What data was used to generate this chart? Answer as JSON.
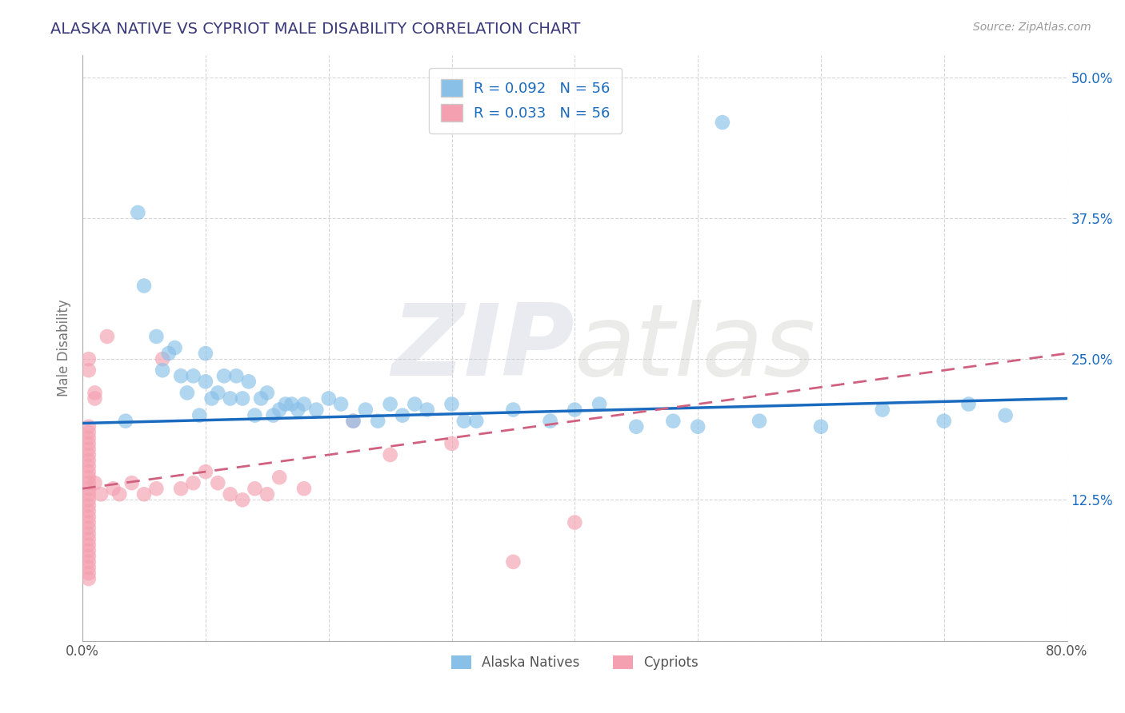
{
  "title": "ALASKA NATIVE VS CYPRIOT MALE DISABILITY CORRELATION CHART",
  "source": "Source: ZipAtlas.com",
  "ylabel": "Male Disability",
  "xmin": 0.0,
  "xmax": 0.8,
  "ymin": 0.0,
  "ymax": 0.52,
  "xticks": [
    0.0,
    0.1,
    0.2,
    0.3,
    0.4,
    0.5,
    0.6,
    0.7,
    0.8
  ],
  "yticks": [
    0.0,
    0.125,
    0.25,
    0.375,
    0.5
  ],
  "ytick_labels": [
    "",
    "12.5%",
    "25.0%",
    "37.5%",
    "50.0%"
  ],
  "alaska_R": 0.092,
  "alaska_N": 56,
  "cypriot_R": 0.033,
  "cypriot_N": 56,
  "alaska_color": "#88c0e8",
  "cypriot_color": "#f4a0b0",
  "alaska_trend_color": "#1a6bbf",
  "cypriot_trend_color": "#d06080",
  "background_color": "#ffffff",
  "grid_color": "#cccccc",
  "title_color": "#3a3a7a",
  "alaska_x": [
    0.035,
    0.045,
    0.05,
    0.06,
    0.065,
    0.07,
    0.075,
    0.08,
    0.085,
    0.09,
    0.095,
    0.1,
    0.1,
    0.105,
    0.11,
    0.115,
    0.12,
    0.125,
    0.13,
    0.135,
    0.14,
    0.145,
    0.15,
    0.155,
    0.16,
    0.165,
    0.17,
    0.175,
    0.18,
    0.19,
    0.2,
    0.21,
    0.22,
    0.23,
    0.24,
    0.25,
    0.26,
    0.27,
    0.28,
    0.3,
    0.31,
    0.32,
    0.35,
    0.38,
    0.4,
    0.42,
    0.45,
    0.48,
    0.5,
    0.52,
    0.55,
    0.6,
    0.65,
    0.7,
    0.72,
    0.75
  ],
  "alaska_y": [
    0.195,
    0.38,
    0.315,
    0.27,
    0.24,
    0.255,
    0.26,
    0.235,
    0.22,
    0.235,
    0.2,
    0.23,
    0.255,
    0.215,
    0.22,
    0.235,
    0.215,
    0.235,
    0.215,
    0.23,
    0.2,
    0.215,
    0.22,
    0.2,
    0.205,
    0.21,
    0.21,
    0.205,
    0.21,
    0.205,
    0.215,
    0.21,
    0.195,
    0.205,
    0.195,
    0.21,
    0.2,
    0.21,
    0.205,
    0.21,
    0.195,
    0.195,
    0.205,
    0.195,
    0.205,
    0.21,
    0.19,
    0.195,
    0.19,
    0.46,
    0.195,
    0.19,
    0.205,
    0.195,
    0.21,
    0.2
  ],
  "cypriot_x": [
    0.005,
    0.005,
    0.005,
    0.005,
    0.005,
    0.005,
    0.005,
    0.005,
    0.005,
    0.005,
    0.005,
    0.005,
    0.005,
    0.005,
    0.005,
    0.005,
    0.005,
    0.005,
    0.005,
    0.005,
    0.005,
    0.005,
    0.005,
    0.005,
    0.005,
    0.005,
    0.005,
    0.005,
    0.005,
    0.005,
    0.01,
    0.01,
    0.01,
    0.015,
    0.02,
    0.025,
    0.03,
    0.04,
    0.05,
    0.06,
    0.065,
    0.08,
    0.09,
    0.1,
    0.11,
    0.12,
    0.13,
    0.14,
    0.15,
    0.16,
    0.18,
    0.22,
    0.25,
    0.3,
    0.35,
    0.4
  ],
  "cypriot_y": [
    0.19,
    0.185,
    0.18,
    0.175,
    0.17,
    0.165,
    0.16,
    0.155,
    0.15,
    0.145,
    0.14,
    0.135,
    0.13,
    0.125,
    0.12,
    0.115,
    0.11,
    0.105,
    0.1,
    0.095,
    0.09,
    0.085,
    0.08,
    0.075,
    0.07,
    0.065,
    0.06,
    0.055,
    0.24,
    0.25,
    0.22,
    0.215,
    0.14,
    0.13,
    0.27,
    0.135,
    0.13,
    0.14,
    0.13,
    0.135,
    0.25,
    0.135,
    0.14,
    0.15,
    0.14,
    0.13,
    0.125,
    0.135,
    0.13,
    0.145,
    0.135,
    0.195,
    0.165,
    0.175,
    0.07,
    0.105
  ],
  "watermark_zip": "ZIP",
  "watermark_atlas": "atlas",
  "legend_labels": [
    "Alaska Natives",
    "Cypriots"
  ]
}
